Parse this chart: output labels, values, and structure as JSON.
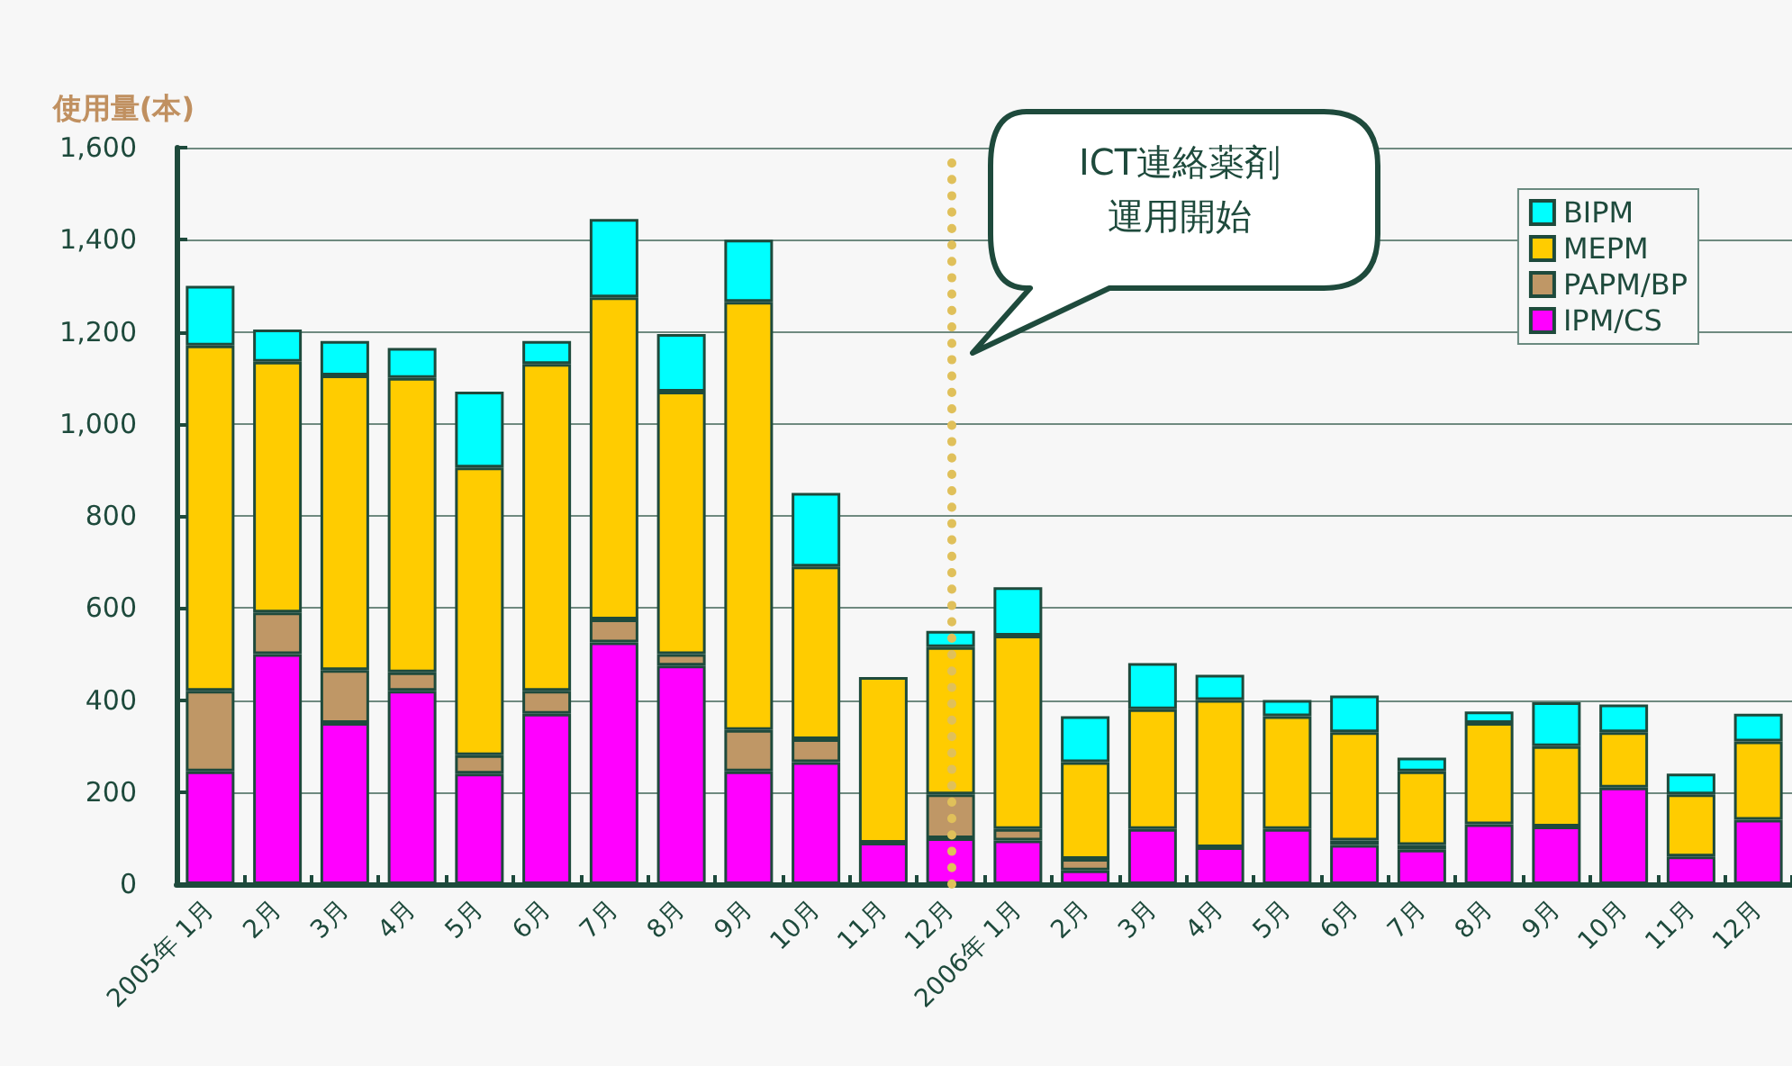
{
  "chart_data": {
    "type": "bar",
    "stacked": true,
    "ylabel": "使用量(本)",
    "categories": [
      "2005年 1月",
      "2月",
      "3月",
      "4月",
      "5月",
      "6月",
      "7月",
      "8月",
      "9月",
      "10月",
      "11月",
      "12月",
      "2006年 1月",
      "2月",
      "3月",
      "4月",
      "5月",
      "6月",
      "7月",
      "8月",
      "9月",
      "10月",
      "11月",
      "12月"
    ],
    "series": [
      {
        "name": "IPM/CS",
        "color": "#ff00ff",
        "values": [
          245,
          500,
          350,
          420,
          240,
          370,
          525,
          475,
          245,
          265,
          90,
          100,
          95,
          30,
          120,
          80,
          120,
          85,
          75,
          130,
          125,
          210,
          60,
          140
        ]
      },
      {
        "name": "PAPM/BP",
        "color": "#bf9766",
        "values": [
          175,
          90,
          115,
          40,
          40,
          50,
          50,
          25,
          90,
          50,
          null,
          95,
          25,
          25,
          null,
          null,
          null,
          10,
          10,
          null,
          null,
          null,
          null,
          null
        ]
      },
      {
        "name": "MEPM",
        "color": "#ffcc00",
        "values": [
          750,
          545,
          640,
          640,
          625,
          710,
          700,
          570,
          930,
          375,
          360,
          320,
          420,
          210,
          260,
          320,
          245,
          235,
          160,
          220,
          175,
          120,
          135,
          170
        ]
      },
      {
        "name": "BIPM",
        "color": "#00ffff",
        "values": [
          130,
          70,
          75,
          65,
          165,
          50,
          170,
          125,
          135,
          160,
          null,
          35,
          105,
          100,
          100,
          55,
          35,
          80,
          30,
          25,
          95,
          60,
          45,
          60
        ]
      }
    ],
    "ylim": [
      0,
      1600
    ],
    "yticks": [
      0,
      200,
      400,
      600,
      800,
      {
        "value": 1000,
        "label": "1,000"
      },
      {
        "value": 1200,
        "label": "1,200"
      },
      {
        "value": 1400,
        "label": "1,400"
      },
      {
        "value": 1600,
        "label": "1,600"
      }
    ],
    "grid": "y",
    "legend": "top right",
    "ref_lines": [
      {
        "axis": "x",
        "value": "12月",
        "color": "#e0c05a",
        "line_style": "dotted"
      }
    ],
    "annotations": [
      "ICT連絡薬剤運用開始"
    ]
  }
}
